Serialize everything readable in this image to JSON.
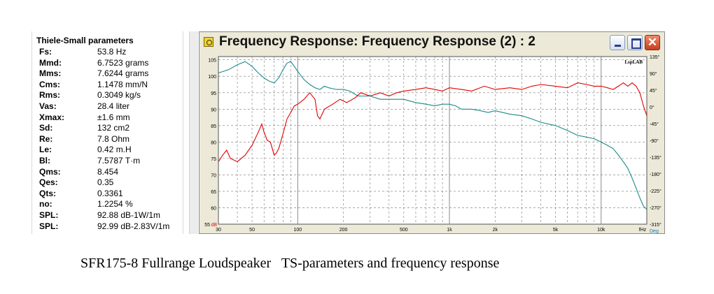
{
  "ts_panel": {
    "title": "Thiele-Small parameters",
    "rows": [
      {
        "k": "Fs:",
        "v": "53.8 Hz"
      },
      {
        "k": "Mmd:",
        "v": "6.7523 grams"
      },
      {
        "k": "Mms:",
        "v": "7.6244 grams"
      },
      {
        "k": "Cms:",
        "v": "1.1478 mm/N"
      },
      {
        "k": "Rms:",
        "v": "0.3049 kg/s"
      },
      {
        "k": "Vas:",
        "v": "28.4 liter"
      },
      {
        "k": "Xmax:",
        "v": "±1.6 mm"
      },
      {
        "k": "Sd:",
        "v": "132 cm2"
      },
      {
        "k": "Re:",
        "v": "7.8 Ohm"
      },
      {
        "k": "Le:",
        "v": "0.42 m.H"
      },
      {
        "k": "Bl:",
        "v": "7.5787 T·m"
      },
      {
        "k": "Qms:",
        "v": "8.454"
      },
      {
        "k": "Qes:",
        "v": "0.35"
      },
      {
        "k": "Qts:",
        "v": "0.3361"
      },
      {
        "k": "no:",
        "v": "1.2254 %"
      },
      {
        "k": "SPL:",
        "v": "92.88 dB-1W/1m"
      },
      {
        "k": "SPL:",
        "v": "92.99 dB-2.83V/1m"
      }
    ]
  },
  "window": {
    "title": "Frequency Response: Frequency Response (2) : 2",
    "close_glyph": "✕"
  },
  "chart_data": {
    "type": "line",
    "brand": "LspLAB",
    "xscale": "log",
    "xlim": [
      30,
      20000
    ],
    "x_ticks": [
      {
        "v": 30,
        "l": "30"
      },
      {
        "v": 50,
        "l": "50"
      },
      {
        "v": 100,
        "l": "100"
      },
      {
        "v": 200,
        "l": "200"
      },
      {
        "v": 500,
        "l": "500"
      },
      {
        "v": 1000,
        "l": "1k"
      },
      {
        "v": 2000,
        "l": "2k"
      },
      {
        "v": 5000,
        "l": "5k"
      },
      {
        "v": 10000,
        "l": "10k"
      }
    ],
    "x_unit_label": "fHz",
    "ylim": [
      55,
      106
    ],
    "y_ticks": [
      55,
      60,
      65,
      70,
      75,
      80,
      85,
      90,
      95,
      100,
      105
    ],
    "y_unit_label": "dB",
    "y2lim": [
      -315,
      135
    ],
    "y2_ticks": [
      {
        "v": 135,
        "l": "135°"
      },
      {
        "v": 90,
        "l": "90°"
      },
      {
        "v": 45,
        "l": "45°"
      },
      {
        "v": 0,
        "l": "0°"
      },
      {
        "v": -45,
        "l": "-45°"
      },
      {
        "v": -90,
        "l": "-90°"
      },
      {
        "v": -135,
        "l": "-135°"
      },
      {
        "v": -180,
        "l": "-180°"
      },
      {
        "v": -225,
        "l": "-225°"
      },
      {
        "v": -270,
        "l": "-270°"
      },
      {
        "v": -315,
        "l": "-315°"
      }
    ],
    "y2_unit_label": "Deg",
    "grid": true,
    "series": [
      {
        "color": "#1a8a8a",
        "axis": "y2",
        "points": [
          [
            30,
            101
          ],
          [
            35,
            102
          ],
          [
            40,
            103.5
          ],
          [
            45,
            104.5
          ],
          [
            50,
            103
          ],
          [
            55,
            101
          ],
          [
            60,
            99.5
          ],
          [
            65,
            98.5
          ],
          [
            70,
            98
          ],
          [
            75,
            99.5
          ],
          [
            80,
            102
          ],
          [
            85,
            104
          ],
          [
            90,
            104.5
          ],
          [
            95,
            103
          ],
          [
            100,
            101.5
          ],
          [
            110,
            99
          ],
          [
            120,
            97.5
          ],
          [
            130,
            96.5
          ],
          [
            140,
            96
          ],
          [
            150,
            97
          ],
          [
            160,
            96.5
          ],
          [
            180,
            96
          ],
          [
            200,
            96
          ],
          [
            220,
            95.5
          ],
          [
            250,
            94
          ],
          [
            300,
            94
          ],
          [
            350,
            93
          ],
          [
            400,
            93
          ],
          [
            500,
            93
          ],
          [
            600,
            92
          ],
          [
            700,
            91.5
          ],
          [
            800,
            91
          ],
          [
            900,
            91.5
          ],
          [
            1000,
            91.5
          ],
          [
            1100,
            91
          ],
          [
            1200,
            90
          ],
          [
            1400,
            90
          ],
          [
            1600,
            89.5
          ],
          [
            1800,
            89
          ],
          [
            2000,
            89.5
          ],
          [
            2500,
            88.5
          ],
          [
            3000,
            88
          ],
          [
            3500,
            87
          ],
          [
            4000,
            86
          ],
          [
            5000,
            85
          ],
          [
            6000,
            83.5
          ],
          [
            7000,
            82
          ],
          [
            8000,
            81.5
          ],
          [
            9000,
            81
          ],
          [
            10000,
            80
          ],
          [
            11000,
            79
          ],
          [
            12000,
            78
          ],
          [
            13000,
            76
          ],
          [
            14000,
            74
          ],
          [
            15000,
            72
          ],
          [
            16000,
            69
          ],
          [
            17000,
            66
          ],
          [
            18000,
            63
          ],
          [
            19000,
            60.5
          ],
          [
            20000,
            59.5
          ]
        ]
      },
      {
        "color": "#e00000",
        "axis": "y",
        "points": [
          [
            30,
            74
          ],
          [
            32,
            76
          ],
          [
            34,
            77.5
          ],
          [
            36,
            75
          ],
          [
            40,
            74
          ],
          [
            45,
            76
          ],
          [
            50,
            79
          ],
          [
            55,
            83
          ],
          [
            58,
            85.5
          ],
          [
            60,
            83
          ],
          [
            63,
            80.5
          ],
          [
            66,
            80
          ],
          [
            68,
            78
          ],
          [
            70,
            76
          ],
          [
            72,
            76.5
          ],
          [
            75,
            78
          ],
          [
            80,
            82.5
          ],
          [
            85,
            87
          ],
          [
            90,
            89
          ],
          [
            95,
            91
          ],
          [
            100,
            91.5
          ],
          [
            110,
            93
          ],
          [
            120,
            95
          ],
          [
            130,
            93
          ],
          [
            135,
            88
          ],
          [
            140,
            87
          ],
          [
            150,
            90
          ],
          [
            170,
            91.5
          ],
          [
            190,
            93
          ],
          [
            210,
            92
          ],
          [
            240,
            93.5
          ],
          [
            260,
            95
          ],
          [
            300,
            94
          ],
          [
            350,
            95
          ],
          [
            400,
            94
          ],
          [
            450,
            95
          ],
          [
            500,
            95.5
          ],
          [
            600,
            96
          ],
          [
            700,
            96.5
          ],
          [
            800,
            96
          ],
          [
            900,
            95.5
          ],
          [
            1000,
            96.5
          ],
          [
            1200,
            96
          ],
          [
            1400,
            95.5
          ],
          [
            1700,
            97
          ],
          [
            2000,
            96
          ],
          [
            2500,
            96.5
          ],
          [
            3000,
            96
          ],
          [
            3500,
            97
          ],
          [
            4000,
            97.5
          ],
          [
            5000,
            97
          ],
          [
            6000,
            96.5
          ],
          [
            7000,
            98
          ],
          [
            8000,
            97.5
          ],
          [
            9000,
            97
          ],
          [
            10000,
            97
          ],
          [
            11000,
            96.5
          ],
          [
            12000,
            96
          ],
          [
            13000,
            97
          ],
          [
            14000,
            98
          ],
          [
            15000,
            97
          ],
          [
            16000,
            98
          ],
          [
            17000,
            97
          ],
          [
            18000,
            95
          ],
          [
            19000,
            91
          ],
          [
            20000,
            88
          ]
        ]
      }
    ]
  },
  "caption": "SFR175-8 Fullrange Loudspeaker   TS-parameters and frequency response"
}
